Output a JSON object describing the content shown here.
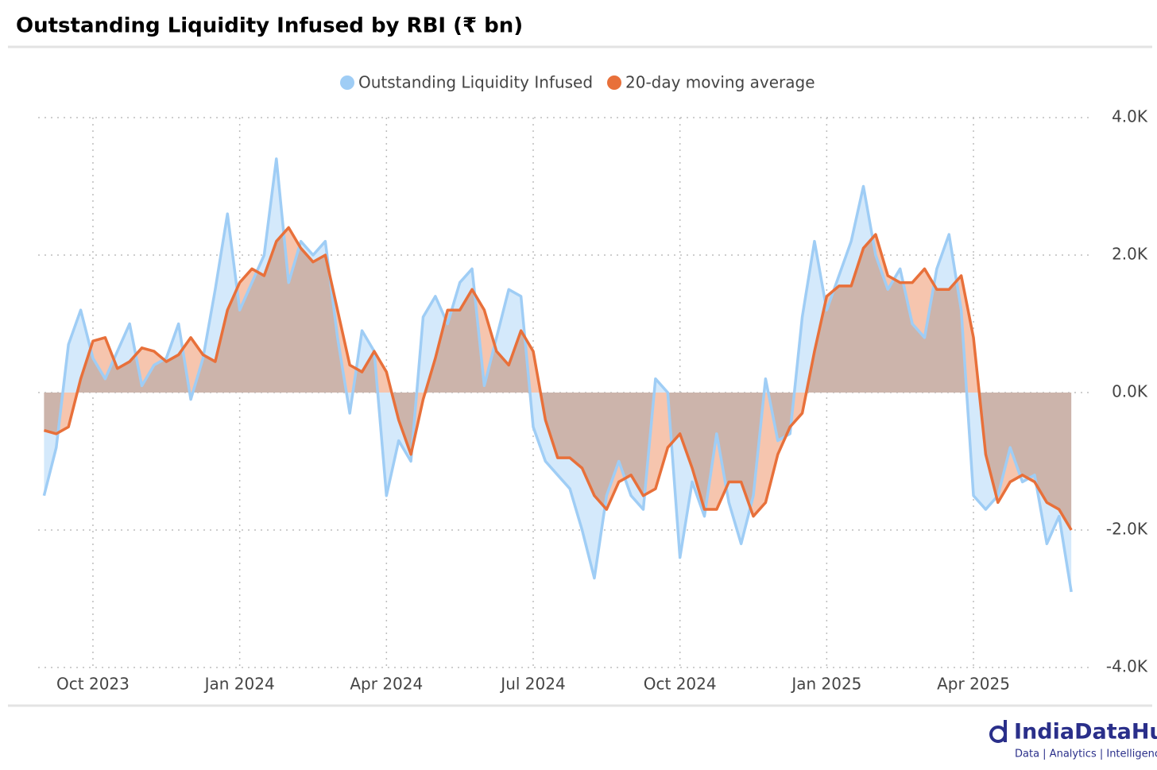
{
  "chart_data": {
    "type": "line",
    "title": "Outstanding Liquidity Infused by RBI (₹ bn)",
    "categories": [
      null,
      null,
      null,
      null,
      "Oct 2023",
      null,
      null,
      null,
      null,
      null,
      null,
      null,
      null,
      null,
      null,
      null,
      "Jan 2024",
      null,
      null,
      null,
      null,
      null,
      null,
      null,
      null,
      null,
      null,
      null,
      "Apr 2024",
      null,
      null,
      null,
      null,
      null,
      null,
      null,
      null,
      null,
      null,
      null,
      "Jul 2024",
      null,
      null,
      null,
      null,
      null,
      null,
      null,
      null,
      null,
      null,
      null,
      "Oct 2024",
      null,
      null,
      null,
      null,
      null,
      null,
      null,
      null,
      null,
      null,
      null,
      "Jan 2025",
      null,
      null,
      null,
      null,
      null,
      null,
      null,
      null,
      null,
      null,
      null,
      "Apr 2025",
      null,
      null,
      null,
      null,
      null,
      null,
      null,
      null
    ],
    "series": [
      {
        "name": "Outstanding Liquidity Infused",
        "color": "#9fcdf5",
        "fill": "#d4e9fb",
        "values": [
          -1500,
          -800,
          700,
          1200,
          500,
          200,
          600,
          1000,
          100,
          400,
          500,
          1000,
          -100,
          500,
          1500,
          2600,
          1200,
          1600,
          2000,
          3400,
          1600,
          2200,
          2000,
          2200,
          800,
          -300,
          900,
          600,
          -1500,
          -700,
          -1000,
          1100,
          1400,
          1000,
          1600,
          1800,
          100,
          800,
          1500,
          1400,
          -500,
          -1000,
          -1200,
          -1400,
          -2000,
          -2700,
          -1500,
          -1000,
          -1500,
          -1700,
          200,
          0,
          -2400,
          -1300,
          -1800,
          -600,
          -1600,
          -2200,
          -1500,
          200,
          -700,
          -600,
          1100,
          2200,
          1200,
          1700,
          2200,
          3000,
          2000,
          1500,
          1800,
          1000,
          800,
          1800,
          2300,
          1200,
          -1500,
          -1700,
          -1500,
          -800,
          -1300,
          -1200,
          -2200,
          -1800,
          -2900
        ]
      },
      {
        "name": "20-day moving average",
        "color": "#e8703a",
        "fill": "#f6c5ae",
        "values": [
          -550,
          -600,
          -500,
          200,
          750,
          800,
          350,
          450,
          650,
          600,
          450,
          550,
          800,
          550,
          450,
          1200,
          1600,
          1800,
          1700,
          2200,
          2400,
          2100,
          1900,
          2000,
          1200,
          400,
          300,
          600,
          300,
          -400,
          -900,
          -100,
          500,
          1200,
          1200,
          1500,
          1200,
          600,
          400,
          900,
          600,
          -400,
          -950,
          -950,
          -1100,
          -1500,
          -1700,
          -1300,
          -1200,
          -1500,
          -1400,
          -800,
          -600,
          -1100,
          -1700,
          -1700,
          -1300,
          -1300,
          -1800,
          -1600,
          -900,
          -500,
          -300,
          600,
          1400,
          1550,
          1550,
          2100,
          2300,
          1700,
          1600,
          1600,
          1800,
          1500,
          1500,
          1700,
          800,
          -900,
          -1600,
          -1300,
          -1200,
          -1300,
          -1600,
          -1700,
          -2000
        ]
      }
    ],
    "ylim": [
      -4000,
      4000
    ],
    "yticks": [
      {
        "value": 4000,
        "label": "4.0K"
      },
      {
        "value": 2000,
        "label": "2.0K"
      },
      {
        "value": 0,
        "label": "0.0K"
      },
      {
        "value": -2000,
        "label": "-2.0K"
      },
      {
        "value": -4000,
        "label": "-4.0K"
      }
    ],
    "grid": true,
    "legend": "top",
    "branding": {
      "name": "IndiaDataHub",
      "tagline": "Data | Analytics | Intelligence"
    }
  }
}
